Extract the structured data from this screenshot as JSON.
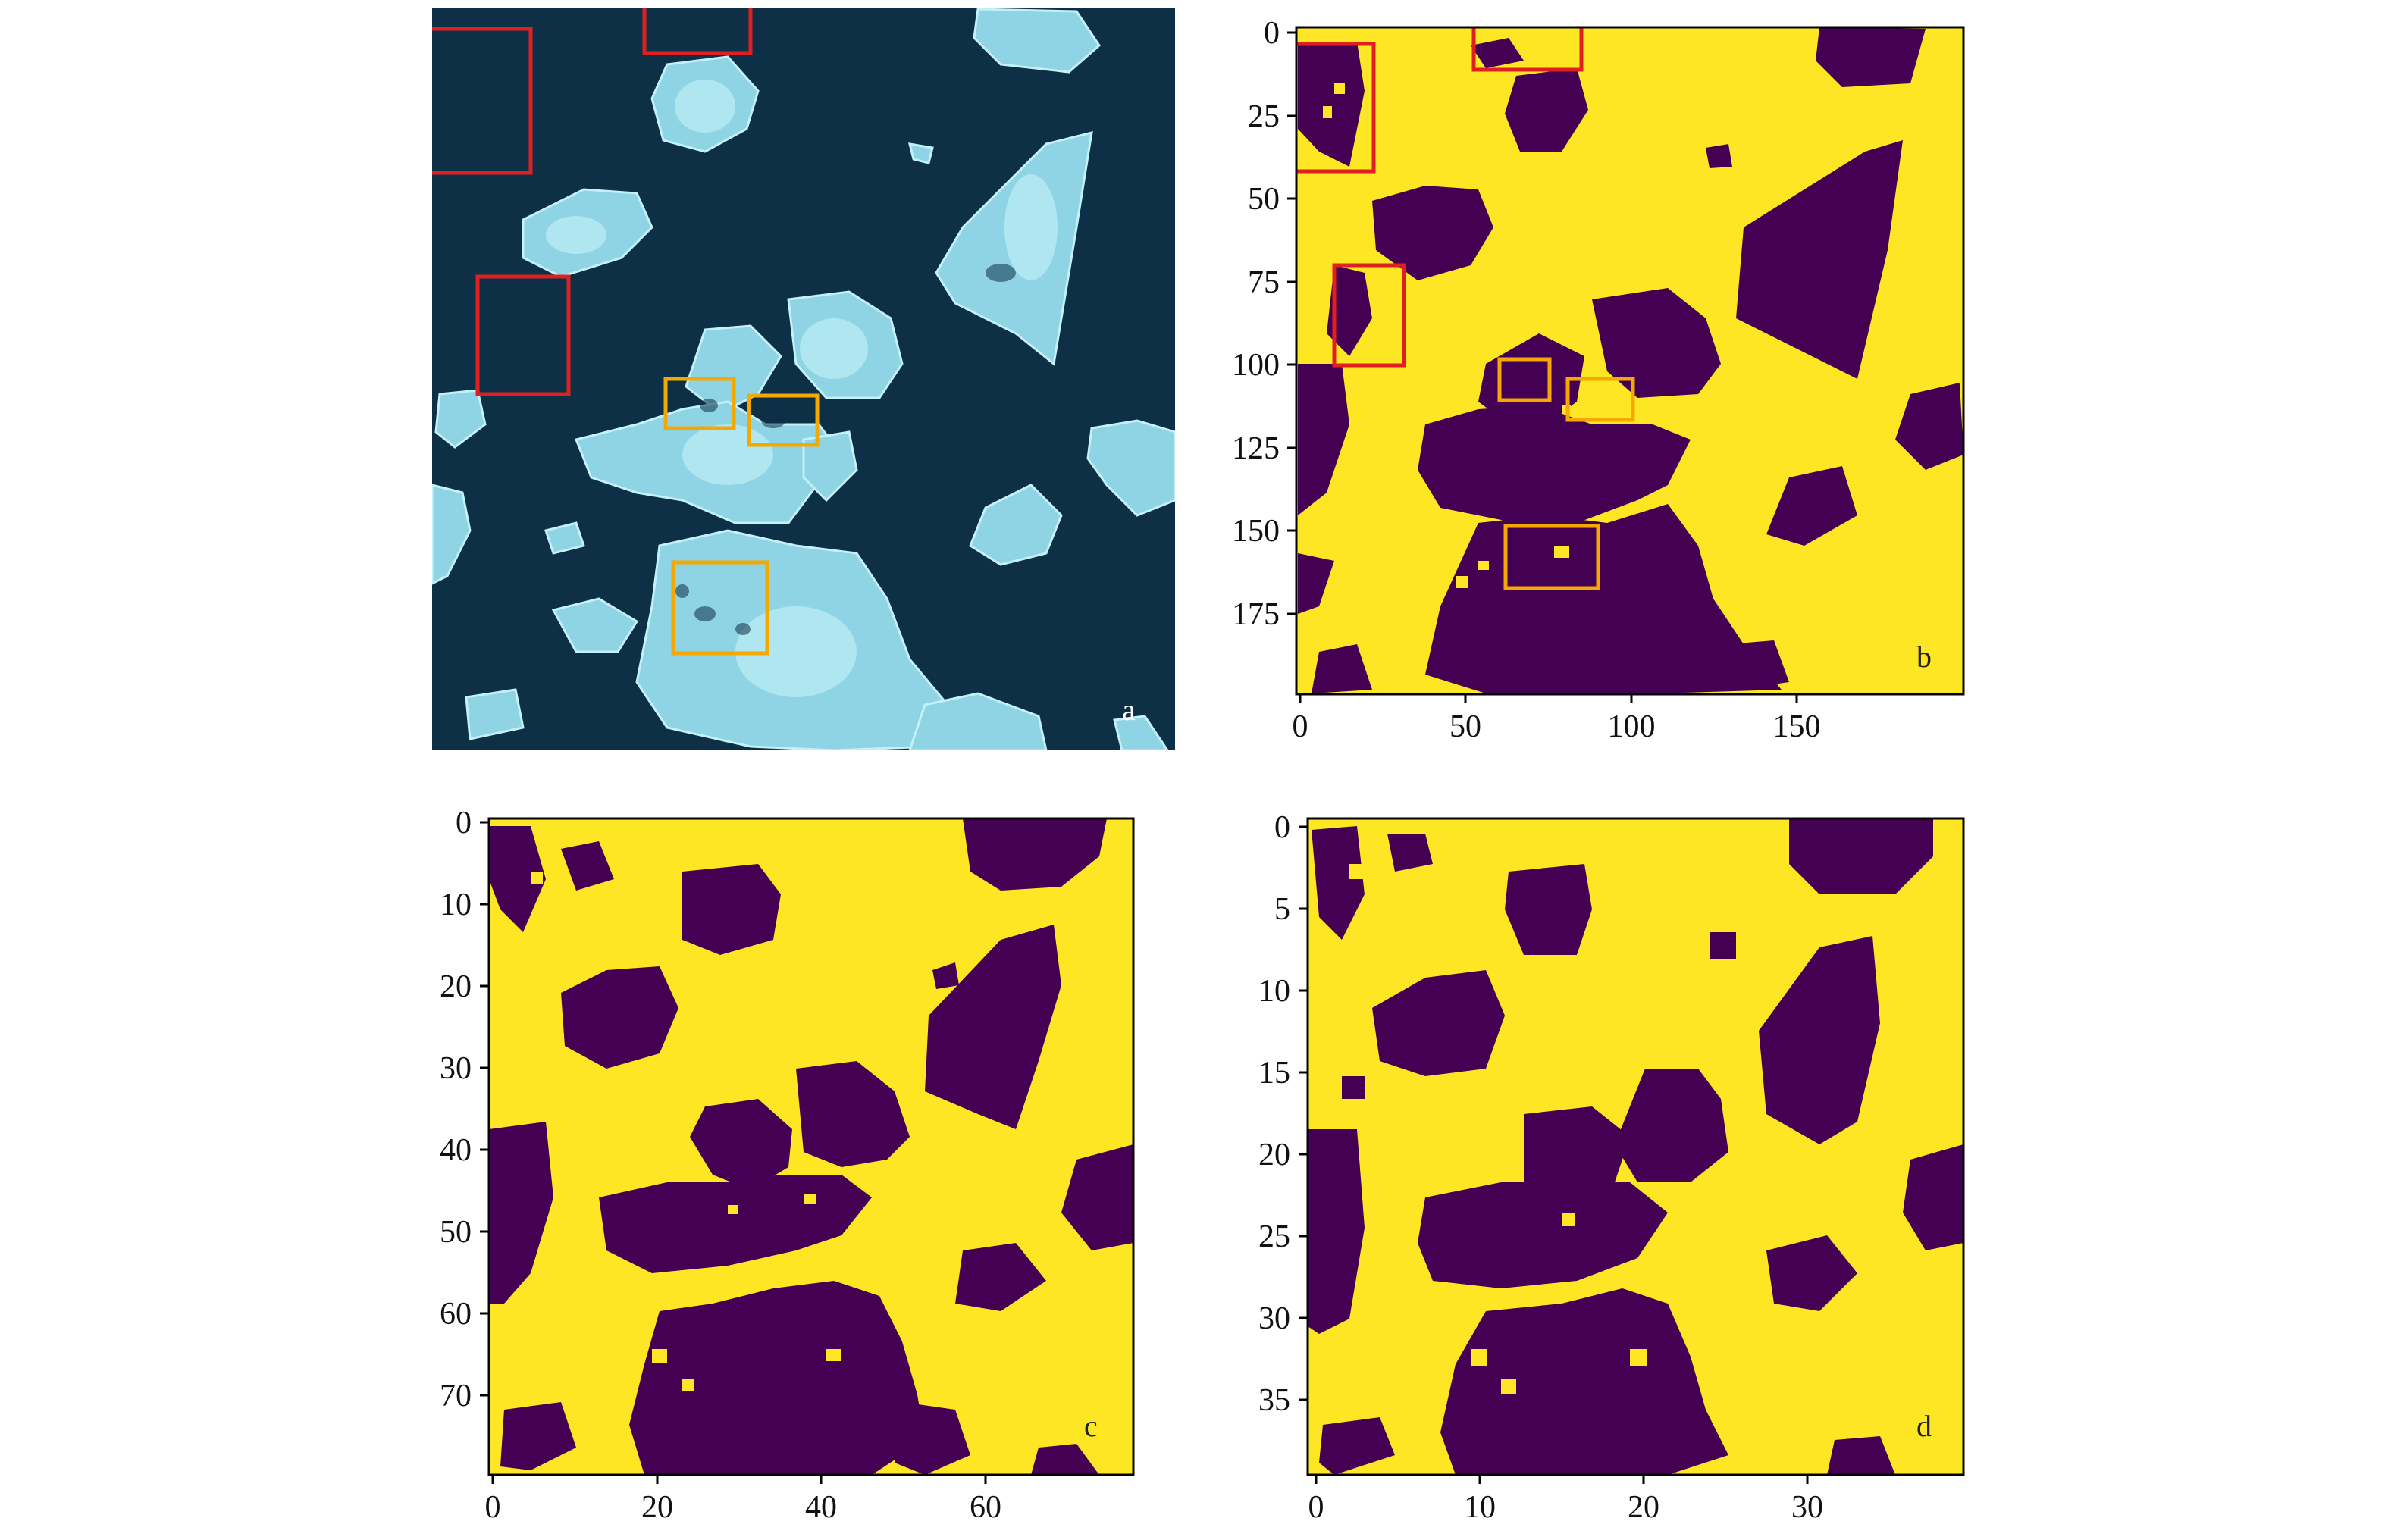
{
  "colors": {
    "water": "#0d3047",
    "ice": "#8ed4e4",
    "ice_bright": "#b9ecf4",
    "ice_class": "#fde725",
    "water_class": "#440154",
    "box_red": "#e02020",
    "box_orange": "#f5a800"
  },
  "panels": [
    {
      "id": "a",
      "label": "a",
      "kind": "satellite-image"
    },
    {
      "id": "b",
      "label": "b",
      "kind": "classification-map",
      "x_ticks": [
        "0",
        "50",
        "100",
        "150"
      ],
      "y_ticks": [
        "0",
        "25",
        "50",
        "75",
        "100",
        "125",
        "150",
        "175"
      ]
    },
    {
      "id": "c",
      "label": "c",
      "kind": "classification-map",
      "x_ticks": [
        "0",
        "20",
        "40",
        "60"
      ],
      "y_ticks": [
        "0",
        "10",
        "20",
        "30",
        "40",
        "50",
        "60",
        "70"
      ]
    },
    {
      "id": "d",
      "label": "d",
      "kind": "classification-map",
      "x_ticks": [
        "0",
        "10",
        "20",
        "30"
      ],
      "y_ticks": [
        "0",
        "5",
        "10",
        "15",
        "20",
        "25",
        "30",
        "35"
      ]
    }
  ]
}
